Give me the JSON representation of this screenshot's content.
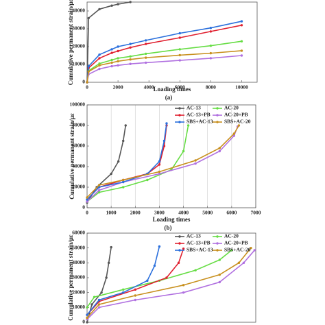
{
  "chart_data": [
    {
      "type": "line",
      "y_label": "Cumulative permanent strain/με",
      "x_label": "Loading times",
      "caption": "(a)",
      "x": [
        0,
        100,
        800,
        1600,
        2000,
        2800,
        3800,
        6000,
        8000,
        10000
      ],
      "xlim": [
        0,
        11000
      ],
      "xticks": [
        0,
        2000,
        4000,
        6000,
        8000,
        10000
      ],
      "ylim": [
        0,
        45000
      ],
      "yticks": [
        0,
        10000,
        20000,
        30000,
        40000
      ],
      "grid": false,
      "series": [
        {
          "color": "#555555",
          "values": [
            0,
            36000,
            41000,
            43000,
            43800,
            45000,
            null,
            null,
            null,
            null
          ]
        },
        {
          "color": "#66dd44",
          "values": [
            0,
            6500,
            10500,
            12500,
            13500,
            14500,
            16000,
            18500,
            20500,
            23000
          ]
        },
        {
          "color": "#e02030",
          "values": [
            0,
            8000,
            13500,
            16500,
            17500,
            19500,
            21500,
            25000,
            28500,
            32000
          ]
        },
        {
          "color": "#b070e0",
          "values": [
            0,
            4500,
            7500,
            9000,
            9500,
            10300,
            11000,
            12300,
            13500,
            15000
          ]
        },
        {
          "color": "#2a6fdc",
          "values": [
            0,
            9000,
            15500,
            18500,
            20000,
            21500,
            23500,
            27500,
            30500,
            34200
          ]
        },
        {
          "color": "#c8901e",
          "values": [
            0,
            6000,
            9500,
            11000,
            11800,
            12800,
            13800,
            15200,
            16300,
            17700
          ]
        }
      ]
    },
    {
      "type": "line",
      "y_label": "Cumulative permanent strain/με",
      "x_label": "Loading times",
      "caption": "(b)",
      "xlim": [
        0,
        7000
      ],
      "xticks": [
        0,
        1000,
        2000,
        3000,
        4000,
        5000,
        6000,
        7000
      ],
      "ylim": [
        0,
        100000
      ],
      "yticks": [
        0,
        20000,
        40000,
        60000,
        80000,
        100000
      ],
      "grid": true,
      "series": [
        {
          "name": "AC-13",
          "color": "#555555",
          "x": [
            0,
            400,
            1000,
            1300,
            1500,
            1600
          ],
          "values": [
            5000,
            20000,
            33000,
            45000,
            65000,
            80000
          ]
        },
        {
          "name": "AC-20",
          "color": "#66dd44",
          "x": [
            0,
            500,
            1500,
            2500,
            3500,
            4000,
            4200
          ],
          "values": [
            6000,
            15000,
            20000,
            27000,
            37000,
            55000,
            80000
          ]
        },
        {
          "name": "AC-13+PB",
          "color": "#e02030",
          "x": [
            0,
            500,
            1500,
            2500,
            3000,
            3200,
            3300
          ],
          "values": [
            8000,
            20000,
            27000,
            33000,
            42000,
            60000,
            80000
          ]
        },
        {
          "name": "AC-20+PB",
          "color": "#b070e0",
          "x": [
            0,
            500,
            1500,
            3000,
            4500,
            5500,
            6100,
            6250
          ],
          "values": [
            6000,
            17000,
            25000,
            33000,
            43000,
            55000,
            70000,
            79000
          ]
        },
        {
          "name": "SBS+AC-13",
          "color": "#2a6fdc",
          "x": [
            0,
            500,
            1500,
            2500,
            3000,
            3200,
            3300
          ],
          "values": [
            8000,
            20000,
            25000,
            33000,
            45000,
            65000,
            82000
          ]
        },
        {
          "name": "SBS+AC-20",
          "color": "#c8901e",
          "x": [
            0,
            500,
            1500,
            3000,
            4500,
            5500,
            6100,
            6300
          ],
          "values": [
            10000,
            22000,
            27000,
            35000,
            46000,
            58000,
            72000,
            80000
          ]
        }
      ]
    },
    {
      "type": "line",
      "y_label": "Cumulative permanent strain/με",
      "xlim": [
        0,
        7000
      ],
      "ylim": [
        0,
        60000
      ],
      "yticks": [
        0,
        10000,
        20000,
        30000,
        40000,
        50000,
        60000
      ],
      "grid": false,
      "series": [
        {
          "name": "AC-13",
          "color": "#555555",
          "x": [
            0,
            200,
            600,
            800,
            900,
            1000
          ],
          "values": [
            0,
            12000,
            20000,
            30000,
            40000,
            50500
          ]
        },
        {
          "name": "AC-20",
          "color": "#66dd44",
          "x": [
            0,
            300,
            1500,
            3000,
            4500,
            5500,
            6000
          ],
          "values": [
            10000,
            17000,
            22000,
            28000,
            35000,
            42000,
            48500
          ]
        },
        {
          "name": "AC-13+PB",
          "color": "#e02030",
          "x": [
            0,
            500,
            2000,
            3300,
            3800,
            4000
          ],
          "values": [
            5000,
            14000,
            22000,
            30000,
            40000,
            49500
          ]
        },
        {
          "name": "AC-20+PB",
          "color": "#b070e0",
          "x": [
            0,
            500,
            2000,
            4000,
            5500,
            6500,
            6950
          ],
          "values": [
            2000,
            10000,
            15000,
            20000,
            27000,
            40000,
            48500
          ]
        },
        {
          "name": "SBS+AC-13",
          "color": "#2a6fdc",
          "x": [
            0,
            500,
            1500,
            2500,
            2800,
            3000
          ],
          "values": [
            5000,
            15000,
            20000,
            28000,
            38000,
            51000
          ]
        },
        {
          "name": "SBS+AC-20",
          "color": "#c8901e",
          "x": [
            0,
            500,
            2000,
            4000,
            5500,
            6300,
            6800
          ],
          "values": [
            3000,
            12000,
            18000,
            25000,
            32000,
            40000,
            50000
          ]
        }
      ]
    }
  ]
}
